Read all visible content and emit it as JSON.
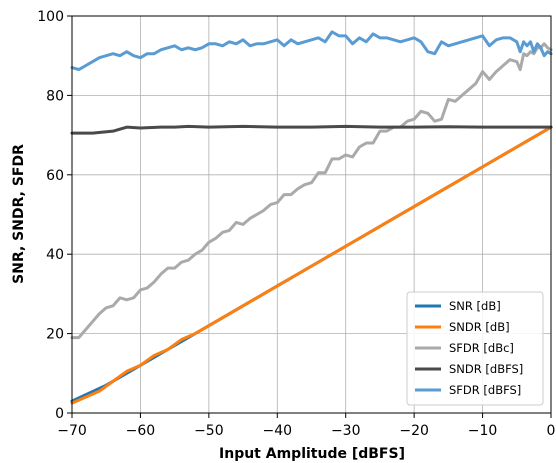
{
  "chart_data": {
    "type": "line",
    "title": "",
    "xlabel": "Input Amplitude [dBFS]",
    "ylabel": "SNR, SNDR, SFDR",
    "xlim": [
      -70,
      0
    ],
    "ylim": [
      0,
      100
    ],
    "xticks": [
      -70,
      -60,
      -50,
      -40,
      -30,
      -20,
      -10,
      0
    ],
    "yticks": [
      0,
      20,
      40,
      60,
      80,
      100
    ],
    "xtick_labels": [
      "−70",
      "−60",
      "−50",
      "−40",
      "−30",
      "−20",
      "−10",
      "0"
    ],
    "ytick_labels": [
      "0",
      "20",
      "40",
      "60",
      "80",
      "100"
    ],
    "grid": true,
    "legend_position": "bottom-right",
    "series": [
      {
        "name": "SNR [dB]",
        "color": "#1f77b4",
        "x": [
          -70,
          -65,
          -60,
          -55,
          -50,
          -45,
          -40,
          -35,
          -30,
          -25,
          -20,
          -15,
          -10,
          -5,
          0
        ],
        "y": [
          3,
          7,
          12,
          17,
          22,
          27,
          32,
          37,
          42,
          47,
          52,
          57,
          62,
          67,
          72
        ]
      },
      {
        "name": "SNDR [dB]",
        "color": "#ff7f0e",
        "x": [
          -70,
          -68,
          -66,
          -64,
          -62,
          -60,
          -58,
          -56,
          -54,
          -52,
          -50,
          -45,
          -40,
          -35,
          -30,
          -25,
          -20,
          -15,
          -10,
          -5,
          0
        ],
        "y": [
          2.5,
          4,
          5.5,
          8,
          10.5,
          12,
          14.5,
          16,
          18.5,
          20,
          22,
          27,
          32,
          37,
          42,
          47,
          52,
          57,
          62,
          67,
          72
        ]
      },
      {
        "name": "SFDR [dBc]",
        "color": "#aaaaaa",
        "x": [
          -70,
          -69,
          -68,
          -67,
          -66,
          -65,
          -64,
          -63,
          -62,
          -61,
          -60,
          -59,
          -58,
          -57,
          -56,
          -55,
          -54,
          -53,
          -52,
          -51,
          -50,
          -49,
          -48,
          -47,
          -46,
          -45,
          -44,
          -43,
          -42,
          -41,
          -40,
          -39,
          -38,
          -37,
          -36,
          -35,
          -34,
          -33,
          -32,
          -31,
          -30,
          -29,
          -28,
          -27,
          -26,
          -25,
          -24,
          -23,
          -22,
          -21,
          -20,
          -19,
          -18,
          -17,
          -16,
          -15,
          -14,
          -13,
          -12,
          -11,
          -10,
          -9,
          -8,
          -7,
          -6,
          -5,
          -4.5,
          -4,
          -3.5,
          -3,
          -2.5,
          -2,
          -1.5,
          -1,
          -0.5,
          0
        ],
        "y": [
          19,
          19,
          21,
          23,
          25,
          26.5,
          27,
          29,
          28.5,
          29,
          31,
          31.5,
          33,
          35,
          36.5,
          36.5,
          38,
          38.5,
          40,
          41,
          43,
          44,
          45.5,
          46,
          48,
          47.5,
          49,
          50,
          51,
          52.5,
          53,
          55,
          55,
          56.5,
          57.5,
          58,
          60.5,
          60.5,
          64,
          64,
          65,
          64.5,
          67,
          68,
          68,
          71,
          71,
          72,
          72,
          73.5,
          74,
          76,
          75.5,
          73.5,
          74,
          79,
          78.5,
          80,
          81.5,
          83,
          86,
          84,
          86,
          87.5,
          89,
          88.5,
          86.5,
          90.5,
          90,
          91,
          90.5,
          92,
          92,
          93,
          92,
          91.5
        ]
      },
      {
        "name": "SNDR [dBFS]",
        "color": "#4a4a4a",
        "x": [
          -70,
          -67,
          -64,
          -62,
          -60,
          -57,
          -55,
          -53,
          -50,
          -45,
          -40,
          -35,
          -30,
          -25,
          -20,
          -15,
          -10,
          -5,
          0
        ],
        "y": [
          70.5,
          70.5,
          71,
          72,
          71.8,
          72,
          72,
          72.2,
          72,
          72.2,
          72,
          72,
          72.2,
          72,
          72,
          72.1,
          72,
          72,
          72
        ]
      },
      {
        "name": "SFDR [dBFS]",
        "color": "#5a9bd4",
        "x": [
          -70,
          -69,
          -68,
          -67,
          -66,
          -65,
          -64,
          -63,
          -62,
          -61,
          -60,
          -59,
          -58,
          -57,
          -56,
          -55,
          -54,
          -53,
          -52,
          -51,
          -50,
          -49,
          -48,
          -47,
          -46,
          -45,
          -44,
          -43,
          -42,
          -41,
          -40,
          -39,
          -38,
          -37,
          -36,
          -35,
          -34,
          -33,
          -32,
          -31,
          -30,
          -29,
          -28,
          -27,
          -26,
          -25,
          -24,
          -23,
          -22,
          -21,
          -20,
          -19,
          -18,
          -17,
          -16,
          -15,
          -14,
          -13,
          -12,
          -11,
          -10,
          -9,
          -8,
          -7,
          -6,
          -5,
          -4.5,
          -4,
          -3.5,
          -3,
          -2.5,
          -2,
          -1.5,
          -1,
          -0.5,
          0
        ],
        "y": [
          87,
          86.5,
          87.5,
          88.5,
          89.5,
          90,
          90.5,
          90,
          91,
          90,
          89.5,
          90.5,
          90.5,
          91.5,
          92,
          92.5,
          91.5,
          92,
          91.5,
          92,
          93,
          93,
          92.5,
          93.5,
          93,
          94,
          92.5,
          93,
          93,
          93.5,
          94,
          92.5,
          94,
          93,
          93.5,
          94,
          94.5,
          93.5,
          96,
          95,
          95,
          93,
          94.5,
          93.5,
          95.5,
          94.5,
          94.5,
          94,
          93.5,
          94,
          94.5,
          93.5,
          91,
          90.5,
          93.5,
          92.5,
          93,
          93.5,
          94,
          94.5,
          95,
          92.5,
          94,
          94.5,
          94.5,
          93.5,
          91,
          93.5,
          92.5,
          93.5,
          91,
          93,
          92,
          90,
          91,
          90.5
        ]
      }
    ]
  }
}
